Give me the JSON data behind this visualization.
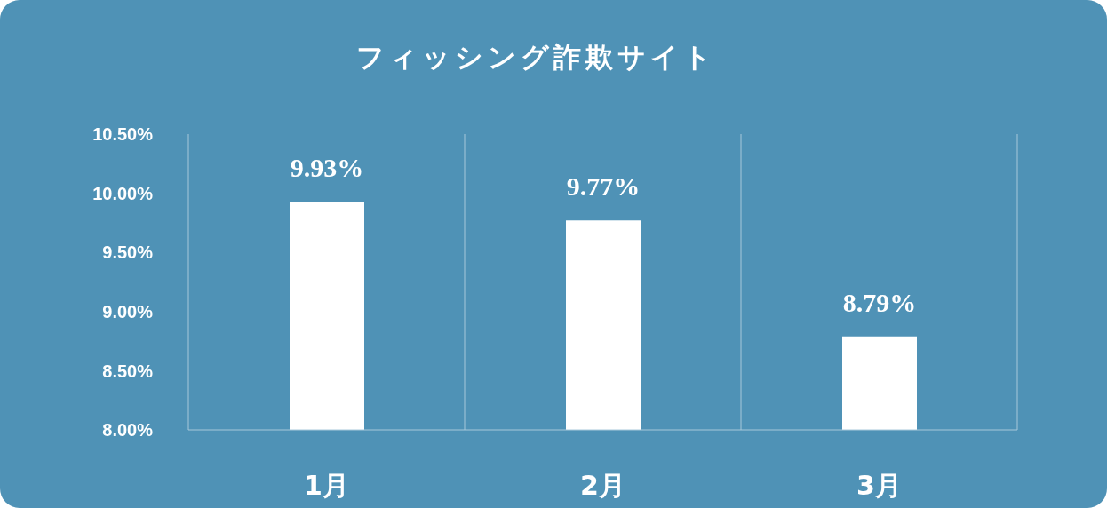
{
  "chart_data": {
    "type": "bar",
    "title": "フィッシング詐欺サイト",
    "categories": [
      "1月",
      "2月",
      "3月"
    ],
    "values": [
      9.93,
      9.77,
      8.79
    ],
    "value_labels": [
      "9.93%",
      "9.77%",
      "8.79%"
    ],
    "color": "#ffffff",
    "ylim": [
      8,
      10.5
    ],
    "yticks": [
      {
        "value": 8,
        "label": "8.00%"
      },
      {
        "value": 8.5,
        "label": "8.50%"
      },
      {
        "value": 9,
        "label": "9.00%"
      },
      {
        "value": 9.5,
        "label": "9.50%"
      },
      {
        "value": 10,
        "label": "10.00%"
      },
      {
        "value": 10.5,
        "label": "10.50%"
      }
    ],
    "grid": "x",
    "legend": false
  }
}
